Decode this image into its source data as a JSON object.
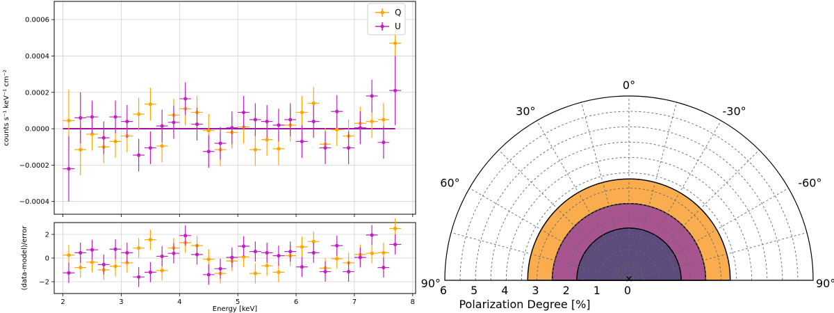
{
  "chart_data": [
    {
      "type": "scatter",
      "panel": "spectrum",
      "xlabel": "",
      "ylabel": "counts s⁻¹ keV⁻¹ cm⁻²",
      "xlim": [
        1.85,
        8.05
      ],
      "ylim": [
        -0.00047,
        0.0007
      ],
      "xticks": [
        2,
        3,
        4,
        5,
        6,
        7,
        8
      ],
      "yticks": [
        -0.0004,
        -0.0002,
        0.0,
        0.0002,
        0.0004,
        0.0006
      ],
      "ytick_labels": [
        "−0.0004",
        "−0.0002",
        "0.0000",
        "0.0002",
        "0.0004",
        "0.0006"
      ],
      "grid": true,
      "legend_position": "top-right",
      "model_line": {
        "x": [
          2.0,
          7.7
        ],
        "y": [
          0.0,
          0.0
        ],
        "color": "#9a009a"
      },
      "series": [
        {
          "name": "Q",
          "color": "#ffa500",
          "points": [
            {
              "x": 2.1,
              "xerr": 0.1,
              "y": 4.5e-05,
              "yerr": 0.00017
            },
            {
              "x": 2.3,
              "xerr": 0.1,
              "y": -0.000115,
              "yerr": 0.00014
            },
            {
              "x": 2.5,
              "xerr": 0.1,
              "y": -3e-05,
              "yerr": 9e-05
            },
            {
              "x": 2.7,
              "xerr": 0.1,
              "y": -0.0001,
              "yerr": 9e-05
            },
            {
              "x": 2.9,
              "xerr": 0.1,
              "y": -7e-05,
              "yerr": 9e-05
            },
            {
              "x": 3.1,
              "xerr": 0.1,
              "y": -4e-05,
              "yerr": 9e-05
            },
            {
              "x": 3.3,
              "xerr": 0.1,
              "y": 8e-05,
              "yerr": 9e-05
            },
            {
              "x": 3.5,
              "xerr": 0.1,
              "y": 0.000135,
              "yerr": 9e-05
            },
            {
              "x": 3.7,
              "xerr": 0.1,
              "y": -9.5e-05,
              "yerr": 9e-05
            },
            {
              "x": 3.9,
              "xerr": 0.1,
              "y": 7.5e-05,
              "yerr": 9e-05
            },
            {
              "x": 4.1,
              "xerr": 0.1,
              "y": 0.00011,
              "yerr": 9e-05
            },
            {
              "x": 4.3,
              "xerr": 0.1,
              "y": 9e-05,
              "yerr": 9e-05
            },
            {
              "x": 4.5,
              "xerr": 0.1,
              "y": -1e-05,
              "yerr": 9e-05
            },
            {
              "x": 4.7,
              "xerr": 0.1,
              "y": -0.000115,
              "yerr": 9e-05
            },
            {
              "x": 4.9,
              "xerr": 0.1,
              "y": -2e-05,
              "yerr": 9e-05
            },
            {
              "x": 5.1,
              "xerr": 0.1,
              "y": 1e-05,
              "yerr": 9e-05
            },
            {
              "x": 5.3,
              "xerr": 0.1,
              "y": -0.000115,
              "yerr": 9e-05
            },
            {
              "x": 5.5,
              "xerr": 0.1,
              "y": -6e-05,
              "yerr": 9e-05
            },
            {
              "x": 5.7,
              "xerr": 0.1,
              "y": -0.00011,
              "yerr": 9e-05
            },
            {
              "x": 5.9,
              "xerr": 0.1,
              "y": 2e-05,
              "yerr": 9e-05
            },
            {
              "x": 6.1,
              "xerr": 0.1,
              "y": 9e-05,
              "yerr": 9e-05
            },
            {
              "x": 6.3,
              "xerr": 0.1,
              "y": 0.00014,
              "yerr": 9e-05
            },
            {
              "x": 6.5,
              "xerr": 0.1,
              "y": -8.5e-05,
              "yerr": 9e-05
            },
            {
              "x": 6.7,
              "xerr": 0.1,
              "y": -5e-06,
              "yerr": 9e-05
            },
            {
              "x": 6.9,
              "xerr": 0.1,
              "y": -4e-05,
              "yerr": 9e-05
            },
            {
              "x": 7.1,
              "xerr": 0.1,
              "y": 3e-05,
              "yerr": 9e-05
            },
            {
              "x": 7.3,
              "xerr": 0.1,
              "y": 4e-05,
              "yerr": 9e-05
            },
            {
              "x": 7.5,
              "xerr": 0.1,
              "y": 5e-05,
              "yerr": 9e-05
            },
            {
              "x": 7.7,
              "xerr": 0.1,
              "y": 0.00047,
              "yerr": 0.00011
            }
          ]
        },
        {
          "name": "U",
          "color": "#c020c0",
          "points": [
            {
              "x": 2.1,
              "xerr": 0.1,
              "y": -0.00022,
              "yerr": 0.00018
            },
            {
              "x": 2.3,
              "xerr": 0.1,
              "y": 6e-05,
              "yerr": 0.00014
            },
            {
              "x": 2.5,
              "xerr": 0.1,
              "y": 6.5e-05,
              "yerr": 9e-05
            },
            {
              "x": 2.7,
              "xerr": 0.1,
              "y": -5e-05,
              "yerr": 9e-05
            },
            {
              "x": 2.9,
              "xerr": 0.1,
              "y": 6.5e-05,
              "yerr": 9e-05
            },
            {
              "x": 3.1,
              "xerr": 0.1,
              "y": 4e-05,
              "yerr": 9e-05
            },
            {
              "x": 3.3,
              "xerr": 0.1,
              "y": -0.000145,
              "yerr": 9e-05
            },
            {
              "x": 3.5,
              "xerr": 0.1,
              "y": -0.000105,
              "yerr": 9e-05
            },
            {
              "x": 3.7,
              "xerr": 0.1,
              "y": 1.5e-05,
              "yerr": 9e-05
            },
            {
              "x": 3.9,
              "xerr": 0.1,
              "y": 3.5e-05,
              "yerr": 9e-05
            },
            {
              "x": 4.1,
              "xerr": 0.1,
              "y": 0.000165,
              "yerr": 9e-05
            },
            {
              "x": 4.3,
              "xerr": 0.1,
              "y": 2.5e-05,
              "yerr": 9e-05
            },
            {
              "x": 4.5,
              "xerr": 0.1,
              "y": -0.000125,
              "yerr": 9e-05
            },
            {
              "x": 4.7,
              "xerr": 0.1,
              "y": -8e-05,
              "yerr": 9e-05
            },
            {
              "x": 4.9,
              "xerr": 0.1,
              "y": 5e-06,
              "yerr": 9e-05
            },
            {
              "x": 5.1,
              "xerr": 0.1,
              "y": 9e-05,
              "yerr": 9e-05
            },
            {
              "x": 5.3,
              "xerr": 0.1,
              "y": 5e-05,
              "yerr": 9e-05
            },
            {
              "x": 5.5,
              "xerr": 0.1,
              "y": 4e-05,
              "yerr": 9e-05
            },
            {
              "x": 5.7,
              "xerr": 0.1,
              "y": 2e-05,
              "yerr": 9e-05
            },
            {
              "x": 5.9,
              "xerr": 0.1,
              "y": 5e-05,
              "yerr": 9e-05
            },
            {
              "x": 6.1,
              "xerr": 0.1,
              "y": -7e-05,
              "yerr": 9e-05
            },
            {
              "x": 6.3,
              "xerr": 0.1,
              "y": 4e-05,
              "yerr": 9e-05
            },
            {
              "x": 6.5,
              "xerr": 0.1,
              "y": -0.000105,
              "yerr": 9e-05
            },
            {
              "x": 6.7,
              "xerr": 0.1,
              "y": 9.5e-05,
              "yerr": 9e-05
            },
            {
              "x": 6.9,
              "xerr": 0.1,
              "y": -0.000105,
              "yerr": 9e-05
            },
            {
              "x": 7.1,
              "xerr": 0.1,
              "y": 5e-06,
              "yerr": 9e-05
            },
            {
              "x": 7.3,
              "xerr": 0.1,
              "y": 0.00018,
              "yerr": 9e-05
            },
            {
              "x": 7.5,
              "xerr": 0.1,
              "y": -7.5e-05,
              "yerr": 9e-05
            },
            {
              "x": 7.7,
              "xerr": 0.1,
              "y": 0.00021,
              "yerr": 0.00019
            }
          ]
        }
      ]
    },
    {
      "type": "scatter",
      "panel": "residuals",
      "xlabel": "Energy [keV]",
      "ylabel": "(data-model)/error",
      "xlim": [
        1.85,
        8.05
      ],
      "ylim": [
        -3.0,
        3.0
      ],
      "xticks": [
        2,
        3,
        4,
        5,
        6,
        7,
        8
      ],
      "yticks": [
        -2,
        0,
        2
      ],
      "ytick_labels": [
        "−2",
        "0",
        "2"
      ],
      "grid": true,
      "series": [
        {
          "name": "Q",
          "color": "#ffa500",
          "points": [
            {
              "x": 2.1,
              "y": 0.25
            },
            {
              "x": 2.3,
              "y": -0.8
            },
            {
              "x": 2.5,
              "y": -0.35
            },
            {
              "x": 2.7,
              "y": -1.0
            },
            {
              "x": 2.9,
              "y": -0.7
            },
            {
              "x": 3.1,
              "y": -0.4
            },
            {
              "x": 3.3,
              "y": 0.85
            },
            {
              "x": 3.5,
              "y": 1.55
            },
            {
              "x": 3.7,
              "y": -1.05
            },
            {
              "x": 3.9,
              "y": 0.85
            },
            {
              "x": 4.1,
              "y": 1.3
            },
            {
              "x": 4.3,
              "y": 1.05
            },
            {
              "x": 4.5,
              "y": -0.1
            },
            {
              "x": 4.7,
              "y": -1.3
            },
            {
              "x": 4.9,
              "y": -0.25
            },
            {
              "x": 5.1,
              "y": 0.1
            },
            {
              "x": 5.3,
              "y": -1.3
            },
            {
              "x": 5.5,
              "y": -0.65
            },
            {
              "x": 5.7,
              "y": -1.2
            },
            {
              "x": 5.9,
              "y": 0.2
            },
            {
              "x": 6.1,
              "y": 0.95
            },
            {
              "x": 6.3,
              "y": 1.4
            },
            {
              "x": 6.5,
              "y": -0.85
            },
            {
              "x": 6.7,
              "y": -0.05
            },
            {
              "x": 6.9,
              "y": -0.4
            },
            {
              "x": 7.1,
              "y": 0.3
            },
            {
              "x": 7.3,
              "y": 0.4
            },
            {
              "x": 7.5,
              "y": 0.45
            },
            {
              "x": 7.7,
              "y": 2.5
            }
          ]
        },
        {
          "name": "U",
          "color": "#c020c0",
          "points": [
            {
              "x": 2.1,
              "y": -1.25
            },
            {
              "x": 2.3,
              "y": 0.45
            },
            {
              "x": 2.5,
              "y": 0.7
            },
            {
              "x": 2.7,
              "y": -0.55
            },
            {
              "x": 2.9,
              "y": 0.75
            },
            {
              "x": 3.1,
              "y": 0.45
            },
            {
              "x": 3.3,
              "y": -1.6
            },
            {
              "x": 3.5,
              "y": -1.2
            },
            {
              "x": 3.7,
              "y": 0.15
            },
            {
              "x": 3.9,
              "y": 0.4
            },
            {
              "x": 4.1,
              "y": 1.9
            },
            {
              "x": 4.3,
              "y": 0.3
            },
            {
              "x": 4.5,
              "y": -1.4
            },
            {
              "x": 4.7,
              "y": -0.9
            },
            {
              "x": 4.9,
              "y": 0.05
            },
            {
              "x": 5.1,
              "y": 1.0
            },
            {
              "x": 5.3,
              "y": 0.55
            },
            {
              "x": 5.5,
              "y": 0.45
            },
            {
              "x": 5.7,
              "y": 0.2
            },
            {
              "x": 5.9,
              "y": 0.55
            },
            {
              "x": 6.1,
              "y": -0.75
            },
            {
              "x": 6.3,
              "y": 0.45
            },
            {
              "x": 6.5,
              "y": -1.15
            },
            {
              "x": 6.7,
              "y": 1.05
            },
            {
              "x": 6.9,
              "y": -1.15
            },
            {
              "x": 7.1,
              "y": 0.05
            },
            {
              "x": 7.3,
              "y": 1.95
            },
            {
              "x": 7.5,
              "y": -0.8
            },
            {
              "x": 7.7,
              "y": 1.15
            }
          ]
        }
      ]
    },
    {
      "type": "polar",
      "panel": "polarization-contours",
      "xlabel": "Polarization Degree [%]",
      "radial_max": 6,
      "radial_ticks": [
        0,
        1,
        2,
        3,
        4,
        5,
        6
      ],
      "radial_tick_labels": [
        "0",
        "1",
        "2",
        "3",
        "4",
        "5",
        "6"
      ],
      "angle_labels": [
        {
          "angle": 0,
          "label": "0°"
        },
        {
          "angle": -30,
          "label": "-30°"
        },
        {
          "angle": 30,
          "label": "30°"
        },
        {
          "angle": -60,
          "label": "-60°"
        },
        {
          "angle": 60,
          "label": "60°"
        },
        {
          "angle": -90,
          "label": "90°"
        },
        {
          "angle": 90,
          "label": "90°"
        }
      ],
      "angle_grid": [
        -75,
        -60,
        -45,
        -30,
        -15,
        0,
        15,
        30,
        45,
        60,
        75
      ],
      "radial_grid": [
        0.5,
        1,
        1.5,
        2,
        2.5,
        3,
        3.5,
        4,
        4.5,
        5,
        5.5
      ],
      "grid": true,
      "regions": [
        {
          "upper_limit_pd": 3.3,
          "color": "#f9ad4e"
        },
        {
          "upper_limit_pd": 2.5,
          "color": "#a8548e"
        },
        {
          "upper_limit_pd": 1.7,
          "color": "#5e4b7d"
        }
      ],
      "best_fit": {
        "pd": 0.05,
        "angle": 0
      }
    }
  ]
}
